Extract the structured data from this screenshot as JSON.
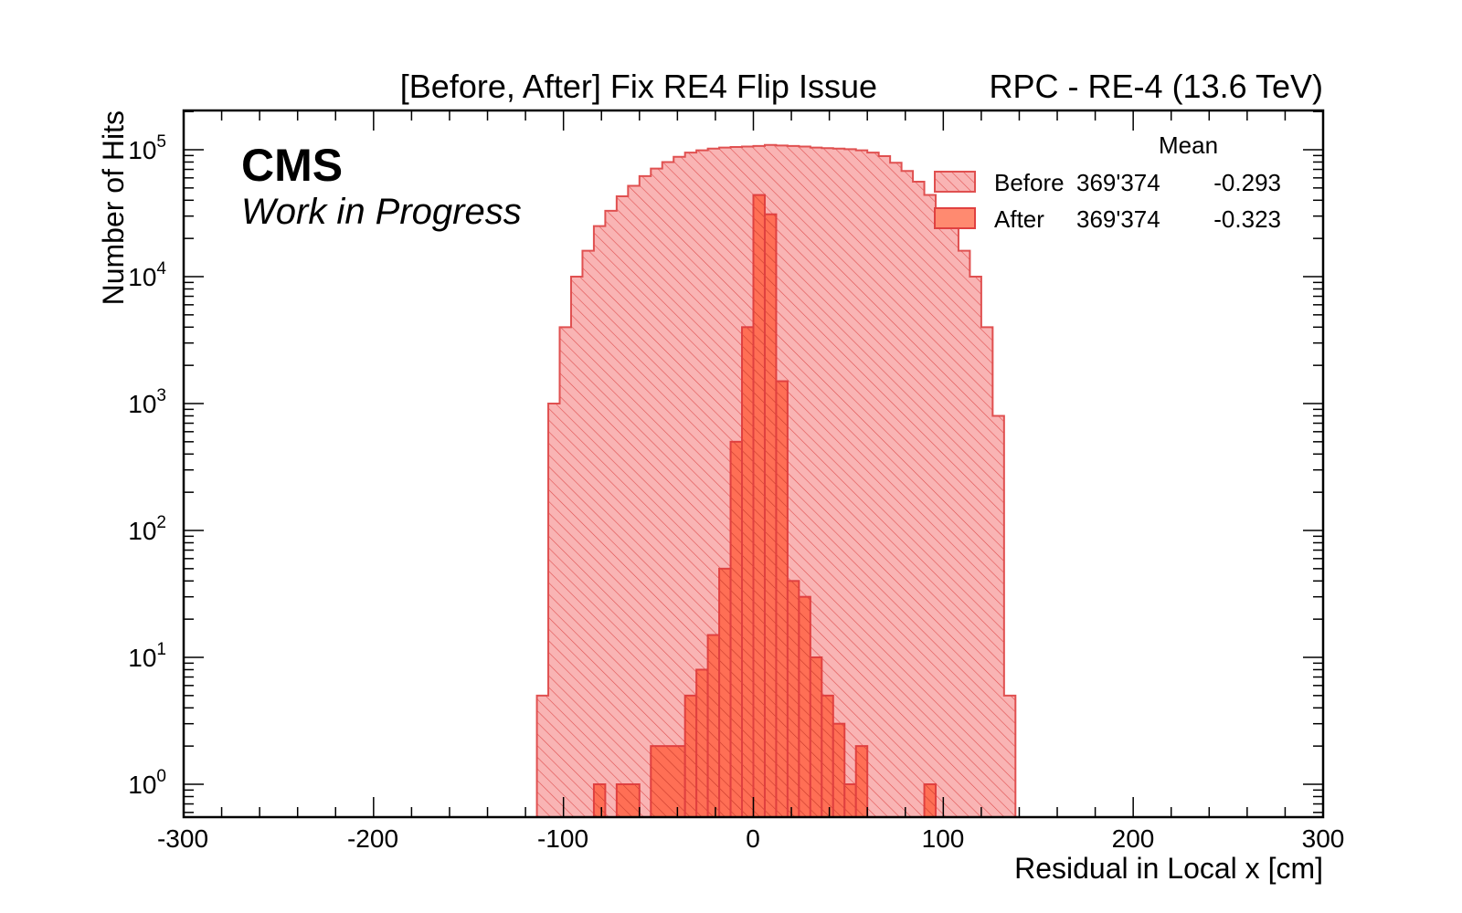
{
  "chart_data": {
    "type": "histogram",
    "title_left": "[Before, After] Fix RE4 Flip Issue",
    "title_right": "RPC - RE-4 (13.6 TeV)",
    "cms_label": "CMS",
    "cms_sublabel": "Work in Progress",
    "xlabel": "Residual in Local x [cm]",
    "ylabel": "Number of Hits",
    "xlim": [
      -300,
      300
    ],
    "ylog": true,
    "x_ticks": [
      "-300",
      "-200",
      "-100",
      "0",
      "100",
      "200",
      "300"
    ],
    "y_ticks": [
      {
        "base": "10",
        "exp": "0"
      },
      {
        "base": "10",
        "exp": "1"
      },
      {
        "base": "10",
        "exp": "2"
      },
      {
        "base": "10",
        "exp": "3"
      },
      {
        "base": "10",
        "exp": "4"
      },
      {
        "base": "10",
        "exp": "5"
      }
    ],
    "legend": {
      "header": "Mean",
      "placement": "top-right",
      "entries": [
        {
          "name": "Before",
          "entries": "369'374",
          "mean": "-0.293"
        },
        {
          "name": "After",
          "entries": "369'374",
          "mean": "-0.323"
        }
      ]
    },
    "colors": {
      "before_fill": "#f9b4b4",
      "before_line": "#e05050",
      "after_fill": "#ff6f55",
      "after_line": "#e04040"
    },
    "series": [
      {
        "name": "Before",
        "bin_start": -114,
        "bin_width": 6,
        "values": [
          5,
          1000,
          4000,
          10000,
          16000,
          25000,
          33000,
          43000,
          52000,
          62000,
          71000,
          80000,
          88000,
          95000,
          99000,
          102000,
          104000,
          105000,
          106000,
          107000,
          109000,
          108000,
          107000,
          106000,
          104000,
          103000,
          102000,
          101000,
          99000,
          95000,
          89000,
          79000,
          68000,
          56000,
          44000,
          34000,
          25000,
          16000,
          10000,
          4000,
          800,
          5
        ]
      },
      {
        "name": "After",
        "bins": [
          {
            "x0": -84,
            "x1": -78,
            "v": 1
          },
          {
            "x0": -72,
            "x1": -60,
            "v": 1
          },
          {
            "x0": -54,
            "x1": -36,
            "v": 2
          },
          {
            "x0": -36,
            "x1": -30,
            "v": 5
          },
          {
            "x0": -30,
            "x1": -24,
            "v": 8
          },
          {
            "x0": -24,
            "x1": -18,
            "v": 15
          },
          {
            "x0": -18,
            "x1": -12,
            "v": 50
          },
          {
            "x0": -12,
            "x1": -6,
            "v": 500
          },
          {
            "x0": -6,
            "x1": 0,
            "v": 4000
          },
          {
            "x0": 0,
            "x1": 6,
            "v": 44000
          },
          {
            "x0": 6,
            "x1": 12,
            "v": 31000
          },
          {
            "x0": 12,
            "x1": 18,
            "v": 1500
          },
          {
            "x0": 18,
            "x1": 24,
            "v": 40
          },
          {
            "x0": 24,
            "x1": 30,
            "v": 30
          },
          {
            "x0": 30,
            "x1": 36,
            "v": 10
          },
          {
            "x0": 36,
            "x1": 42,
            "v": 5
          },
          {
            "x0": 42,
            "x1": 48,
            "v": 3
          },
          {
            "x0": 48,
            "x1": 54,
            "v": 1
          },
          {
            "x0": 54,
            "x1": 60,
            "v": 2
          },
          {
            "x0": 90,
            "x1": 96,
            "v": 1
          }
        ]
      }
    ]
  }
}
